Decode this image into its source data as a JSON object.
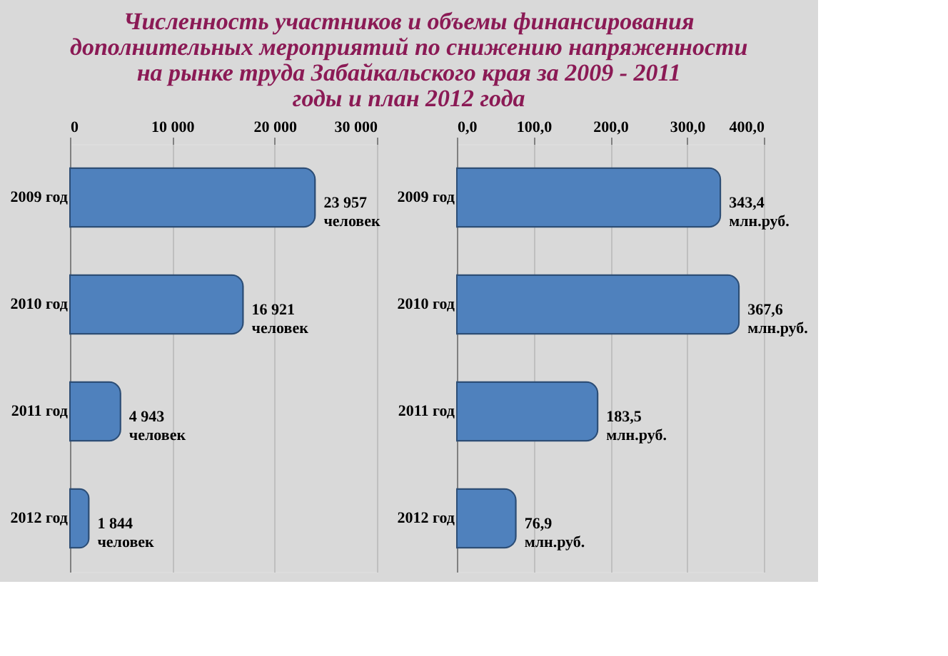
{
  "chart_data": [
    {
      "type": "bar",
      "orientation": "horizontal",
      "title": "Численность участников и объемы финансирования дополнительных мероприятий по снижению напряженности на рынке труда Забайкальского края за 2009 - 2011 годы и план 2012 года",
      "categories": [
        "2009 год",
        "2010 год",
        "2011 год",
        "2012 год"
      ],
      "series": [
        {
          "color": "#4f81bd",
          "values": [
            23957,
            16921,
            4943,
            1844
          ],
          "value_labels": [
            "23 957\nчеловек",
            "16 921\nчеловек",
            "4 943\nчеловек",
            "1 844\nчеловек"
          ]
        }
      ],
      "xlim": [
        0,
        30000
      ],
      "xticks": [
        0,
        {
          "value": 10000,
          "label": "10 000"
        },
        {
          "value": 20000,
          "label": "20 000"
        },
        {
          "value": 30000,
          "label": "30 000"
        }
      ],
      "grid": "x"
    },
    {
      "type": "bar",
      "orientation": "horizontal",
      "categories": [
        "2009 год",
        "2010 год",
        "2011 год",
        "2012 год"
      ],
      "series": [
        {
          "color": "#4f81bd",
          "values": [
            343.4,
            367.6,
            183.5,
            76.9
          ],
          "value_labels": [
            "343,4\nмлн.руб.",
            "367,6\nмлн.руб.",
            "183,5\nмлн.руб.",
            "76,9\nмлн.руб."
          ]
        }
      ],
      "xlim": [
        0,
        400
      ],
      "xticks": [
        {
          "value": 0,
          "label": "0,0"
        },
        {
          "value": 100,
          "label": "100,0"
        },
        {
          "value": 200,
          "label": "200,0"
        },
        {
          "value": 300,
          "label": "300,0"
        },
        {
          "value": 400,
          "label": "400,0"
        }
      ],
      "grid": "x"
    }
  ]
}
